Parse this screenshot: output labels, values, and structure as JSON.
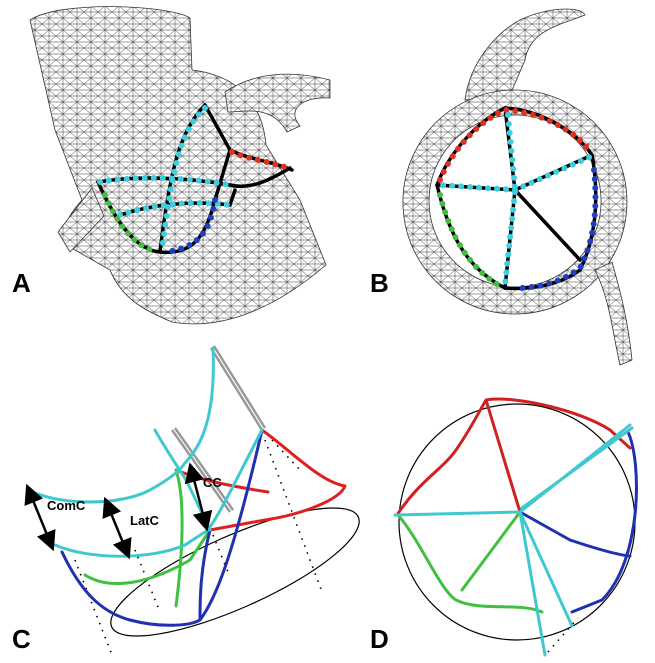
{
  "panels": [
    {
      "label": "A"
    },
    {
      "label": "B"
    },
    {
      "label": "C"
    },
    {
      "label": "D"
    }
  ],
  "annotations": {
    "comc": "ComC",
    "latc": "LatC",
    "cc": "CC"
  }
}
